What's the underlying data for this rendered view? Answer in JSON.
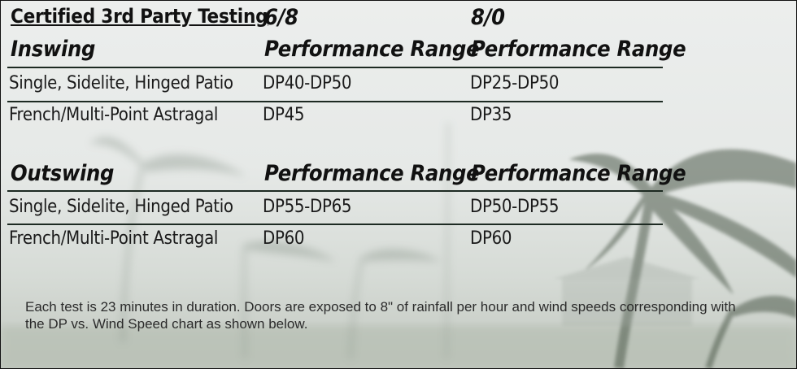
{
  "header": {
    "title": "Certified 3rd Party Testing",
    "size_a": "6/8",
    "size_b": "8/0"
  },
  "inswing": {
    "label": "Inswing",
    "col_a": "Performance Range",
    "col_b": "Performance Range",
    "rows": [
      {
        "type": "Single, Sidelite, Hinged Patio",
        "a": "DP40-DP50",
        "b": "DP25-DP50"
      },
      {
        "type": "French/Multi-Point Astragal",
        "a": "DP45",
        "b": "DP35"
      }
    ]
  },
  "outswing": {
    "label": "Outswing",
    "col_a": "Performance Range",
    "col_b": "Performance Range",
    "rows": [
      {
        "type": "Single, Sidelite, Hinged Patio",
        "a": "DP55-DP65",
        "b": "DP50-DP55"
      },
      {
        "type": "French/Multi-Point Astragal",
        "a": "DP60",
        "b": "DP60"
      }
    ]
  },
  "note": "Each test is 23 minutes in duration. Doors are exposed to 8\" of rainfall per hour and wind speeds corresponding with the DP vs. Wind Speed chart as shown below."
}
